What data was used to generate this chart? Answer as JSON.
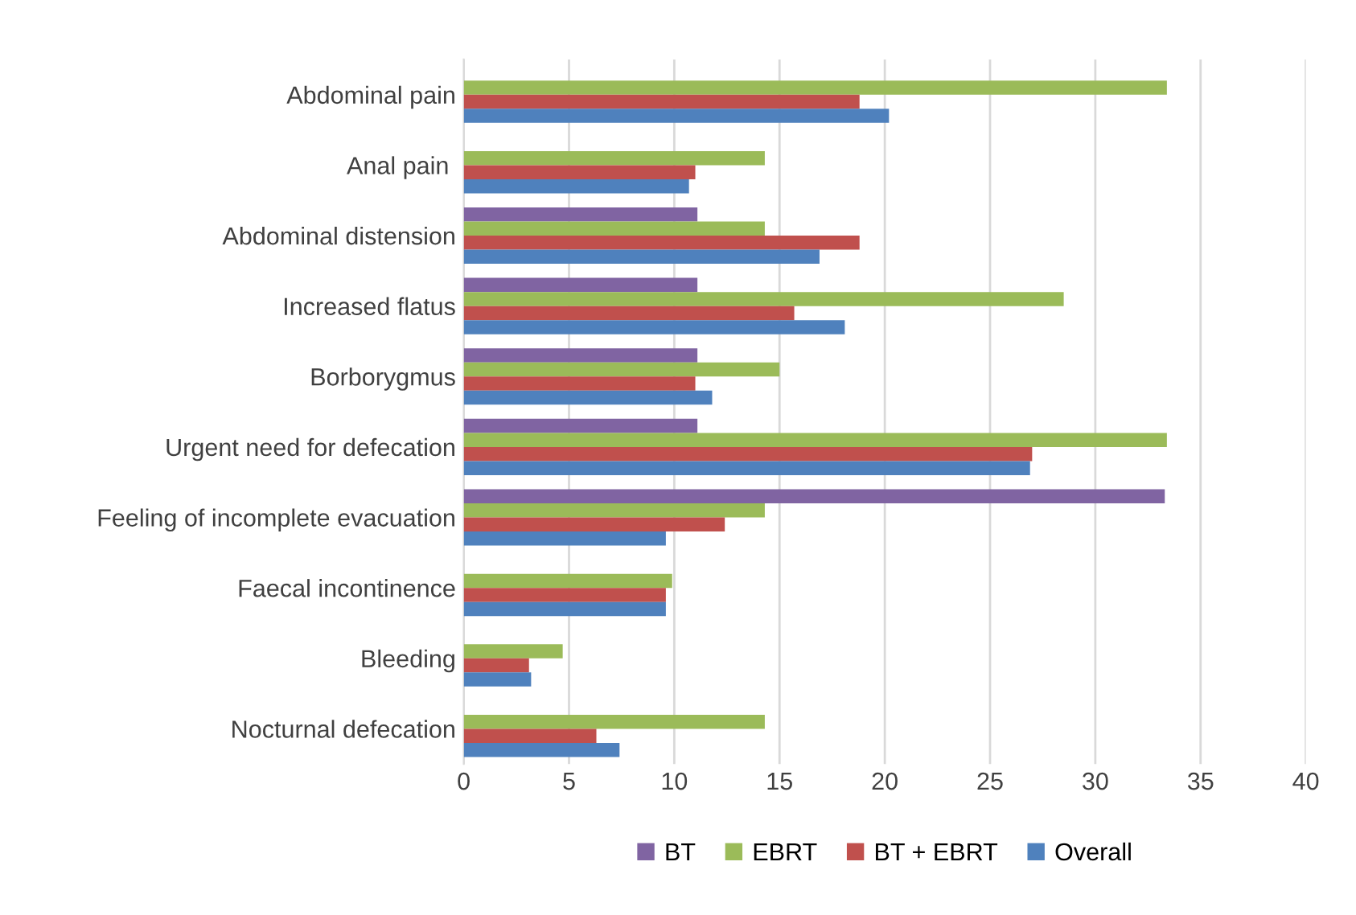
{
  "chart_data": {
    "type": "bar",
    "orientation": "horizontal",
    "categories": [
      "Abdominal pain",
      "Anal pain ",
      "Abdominal distension",
      "Increased flatus",
      "Borborygmus",
      "Urgent need for defecation",
      "Feeling of incomplete evacuation",
      "Faecal incontinence",
      "Bleeding",
      "Nocturnal defecation"
    ],
    "series": [
      {
        "name": "BT",
        "color": "#8064a2",
        "values": [
          null,
          null,
          11.1,
          11.1,
          11.1,
          11.1,
          33.3,
          null,
          null,
          null
        ]
      },
      {
        "name": "EBRT",
        "color": "#9bbb59",
        "values": [
          33.4,
          14.3,
          14.3,
          28.5,
          15.0,
          33.4,
          14.3,
          9.9,
          4.7,
          14.3
        ]
      },
      {
        "name": "BT + EBRT",
        "color": "#c0504d",
        "values": [
          18.8,
          11.0,
          18.8,
          15.7,
          11.0,
          27.0,
          12.4,
          9.6,
          3.1,
          6.3
        ]
      },
      {
        "name": "Overall",
        "color": "#4f81bd",
        "values": [
          20.2,
          10.7,
          16.9,
          18.1,
          11.8,
          26.9,
          9.6,
          9.6,
          3.2,
          7.4
        ]
      }
    ],
    "xlim": [
      0,
      40
    ],
    "xticks": [
      0,
      5,
      10,
      15,
      20,
      25,
      30,
      35,
      40
    ],
    "grid": "x",
    "legend": "bottom"
  }
}
